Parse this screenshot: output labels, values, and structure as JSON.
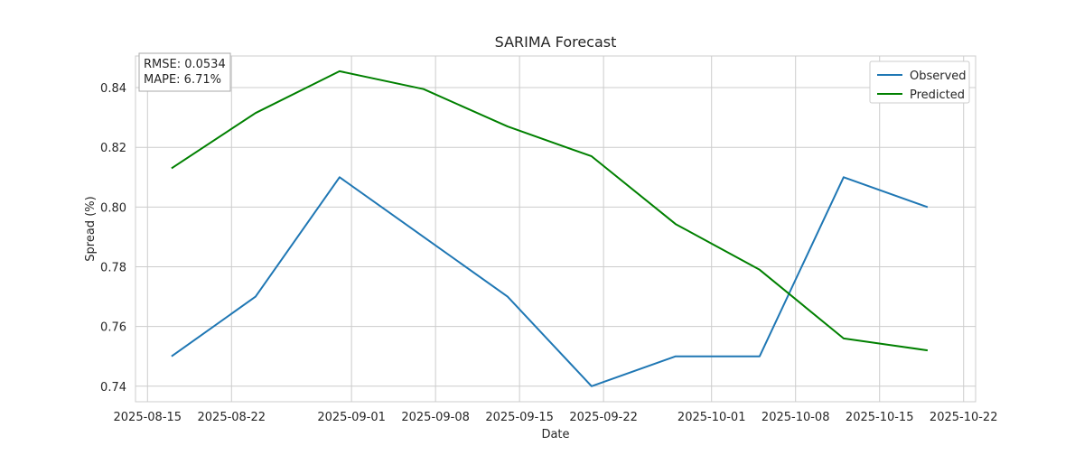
{
  "chart_data": {
    "type": "line",
    "title": "SARIMA Forecast",
    "xlabel": "Date",
    "ylabel": "Spread (%)",
    "x_ticks": [
      "2025-08-15",
      "2025-08-22",
      "2025-09-01",
      "2025-09-08",
      "2025-09-15",
      "2025-09-22",
      "2025-10-01",
      "2025-10-08",
      "2025-10-15",
      "2025-10-22"
    ],
    "y_ticks": [
      0.74,
      0.76,
      0.78,
      0.8,
      0.82,
      0.84
    ],
    "xlim": [
      "2025-08-14",
      "2025-10-23"
    ],
    "ylim": [
      0.7348,
      0.8506
    ],
    "grid": true,
    "legend_position": "top-right",
    "annotation": [
      "RMSE: 0.0534",
      "MAPE: 6.71%"
    ],
    "series": [
      {
        "name": "Observed",
        "color": "#1f77b4",
        "x": [
          "2025-08-17",
          "2025-08-24",
          "2025-08-31",
          "2025-09-07",
          "2025-09-14",
          "2025-09-21",
          "2025-09-28",
          "2025-10-05",
          "2025-10-12",
          "2025-10-19"
        ],
        "y": [
          0.75,
          0.77,
          0.81,
          0.79,
          0.77,
          0.74,
          0.75,
          0.75,
          0.81,
          0.8
        ]
      },
      {
        "name": "Predicted",
        "color": "#008000",
        "x": [
          "2025-08-17",
          "2025-08-24",
          "2025-08-31",
          "2025-09-07",
          "2025-09-14",
          "2025-09-21",
          "2025-09-28",
          "2025-10-05",
          "2025-10-12",
          "2025-10-19"
        ],
        "y": [
          0.813,
          0.8315,
          0.8455,
          0.8395,
          0.827,
          0.817,
          0.7943,
          0.779,
          0.756,
          0.752
        ]
      }
    ]
  }
}
